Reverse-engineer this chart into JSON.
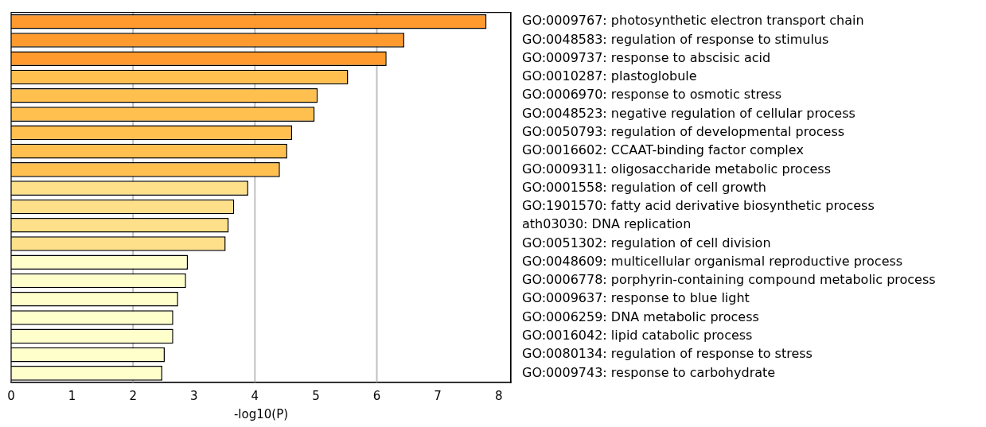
{
  "chart_data": {
    "type": "bar",
    "orientation": "horizontal",
    "xlabel": "-log10(P)",
    "categories": [
      "GO:0009767: photosynthetic electron transport chain",
      "GO:0048583: regulation of response to stimulus",
      "GO:0009737: response to abscisic acid",
      "GO:0010287: plastoglobule",
      "GO:0006970: response to osmotic stress",
      "GO:0048523: negative regulation of cellular process",
      "GO:0050793: regulation of developmental process",
      "GO:0016602: CCAAT-binding factor complex",
      "GO:0009311: oligosaccharide metabolic process",
      "GO:0001558: regulation of cell growth",
      "GO:1901570: fatty acid derivative biosynthetic process",
      "ath03030: DNA replication",
      "GO:0051302: regulation of cell division",
      "GO:0048609: multicellular organismal reproductive process",
      "GO:0006778: porphyrin-containing compound metabolic process",
      "GO:0009637: response to blue light",
      "GO:0006259: DNA metabolic process",
      "GO:0016042: lipid catabolic process",
      "GO:0080134: regulation of response to stress",
      "GO:0009743: response to carbohydrate"
    ],
    "values": [
      7.8,
      6.45,
      6.16,
      5.53,
      5.03,
      4.98,
      4.61,
      4.53,
      4.41,
      3.89,
      3.66,
      3.57,
      3.52,
      2.9,
      2.87,
      2.74,
      2.66,
      2.66,
      2.52,
      2.48
    ],
    "colors": [
      "#ff9a2e",
      "#ff9a2e",
      "#ff9a2e",
      "#ffc04f",
      "#ffc04f",
      "#ffc04f",
      "#ffc04f",
      "#ffc04f",
      "#ffc04f",
      "#ffe08a",
      "#ffe08a",
      "#ffe08a",
      "#ffe08a",
      "#ffffcc",
      "#ffffcc",
      "#ffffcc",
      "#ffffcc",
      "#ffffcc",
      "#ffffcc",
      "#ffffcc"
    ],
    "xlim": [
      0,
      8.2
    ],
    "xticks": [
      0,
      1,
      2,
      3,
      4,
      5,
      6,
      7,
      8
    ],
    "ref_lines": [
      {
        "axis": "x",
        "value": 2,
        "color": "#c0c0c0"
      },
      {
        "axis": "x",
        "value": 4,
        "color": "#c0c0c0"
      },
      {
        "axis": "x",
        "value": 6,
        "color": "#c0c0c0"
      }
    ],
    "legend": false
  }
}
